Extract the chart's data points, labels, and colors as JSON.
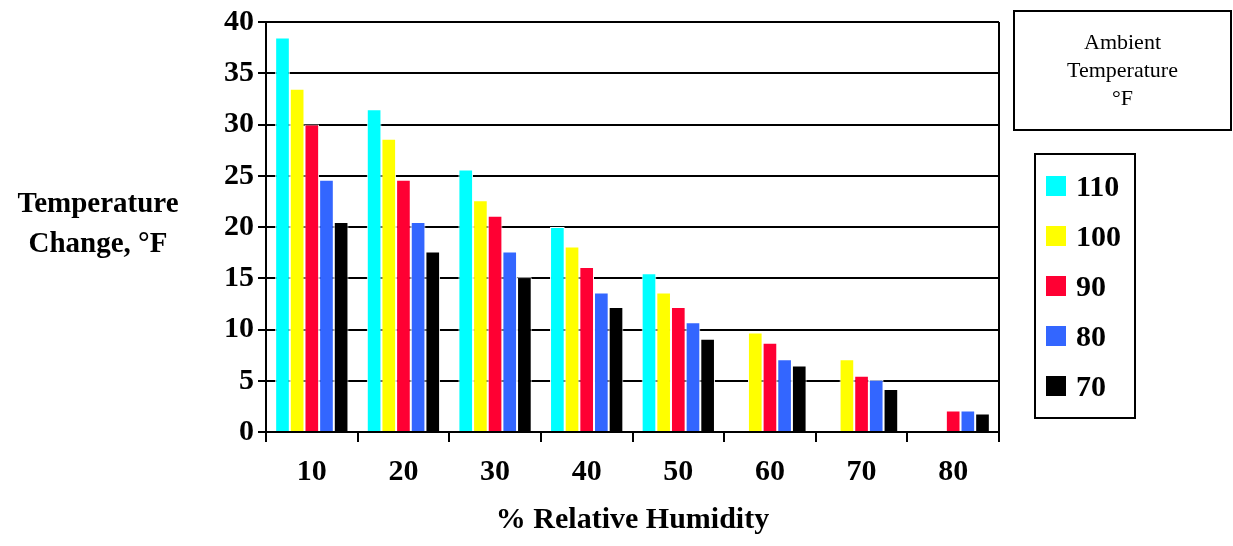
{
  "chart_data": {
    "type": "bar",
    "xlabel": "% Relative Humidity",
    "ylabel": "Temperature Change, °F",
    "legend_title": "Ambient Temperature °F",
    "categories": [
      "10",
      "20",
      "30",
      "40",
      "50",
      "60",
      "70",
      "80"
    ],
    "series": [
      {
        "name": "110",
        "color": "#00ffff",
        "values": [
          38.5,
          31.5,
          25.6,
          20.0,
          15.5,
          null,
          null,
          null
        ]
      },
      {
        "name": "100",
        "color": "#ffff00",
        "values": [
          33.5,
          28.6,
          22.6,
          18.1,
          13.6,
          9.7,
          7.1,
          null
        ]
      },
      {
        "name": "90",
        "color": "#ff0033",
        "values": [
          30.0,
          24.6,
          21.1,
          16.1,
          12.2,
          8.7,
          5.5,
          2.1
        ]
      },
      {
        "name": "80",
        "color": "#3366ff",
        "values": [
          24.6,
          20.5,
          17.6,
          13.6,
          10.7,
          7.1,
          5.1,
          2.1
        ]
      },
      {
        "name": "70",
        "color": "#000000",
        "values": [
          20.5,
          17.6,
          15.1,
          12.2,
          9.1,
          6.5,
          4.2,
          1.8
        ]
      }
    ],
    "ylim": [
      0,
      40
    ],
    "yticks": [
      0,
      5,
      10,
      15,
      20,
      25,
      30,
      35,
      40
    ],
    "grid": "y",
    "legend": "right"
  }
}
